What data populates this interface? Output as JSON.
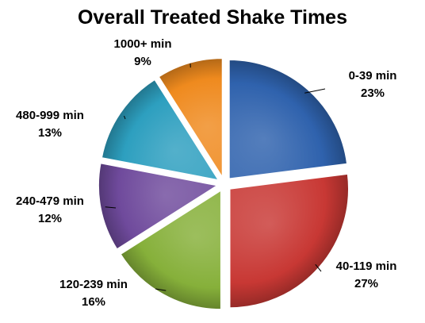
{
  "chart_data": {
    "type": "pie",
    "title": "Overall Treated Shake Times",
    "categories": [
      "0-39 min",
      "40-119 min",
      "120-239 min",
      "240-479 min",
      "480-999 min",
      "1000+ min"
    ],
    "values": [
      23,
      27,
      16,
      12,
      13,
      9
    ],
    "percent_labels": [
      "23%",
      "27%",
      "16%",
      "12%",
      "13%",
      "9%"
    ],
    "colors": [
      "#2f62ad",
      "#c83834",
      "#86b03a",
      "#6f4a9c",
      "#2d9fbf",
      "#ef8a1e"
    ],
    "exploded": true,
    "legend": "none"
  }
}
